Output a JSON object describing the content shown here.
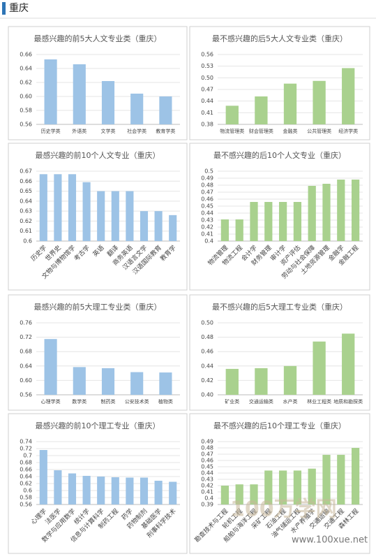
{
  "header": {
    "title": "重庆"
  },
  "watermark": {
    "logo": "100万学网",
    "url": "www.100xue.net"
  },
  "chart_data": [
    {
      "type": "bar",
      "title": "最感兴趣的前5大人文专业类（重庆）",
      "color": "#9dc3e6",
      "grid": true,
      "categories": [
        "历史学类",
        "外语类",
        "文学类",
        "社会学类",
        "教育学类"
      ],
      "values": [
        0.653,
        0.646,
        0.622,
        0.604,
        0.6
      ],
      "ylim": [
        0.56,
        0.66
      ],
      "yticks": [
        0.56,
        0.58,
        {
          "value": 0.6,
          "label": "0.60"
        },
        0.62,
        0.64,
        0.66
      ]
    },
    {
      "type": "bar",
      "title": "最不感兴趣的后5大人文专业类（重庆）",
      "color": "#a9d18e",
      "grid": true,
      "categories": [
        "物流管理类",
        "财会管理类",
        "金融类",
        "公共管理类",
        "经济学类"
      ],
      "values": [
        0.428,
        0.452,
        0.485,
        0.492,
        0.525
      ],
      "ylim": [
        0.38,
        0.56
      ],
      "yticks": [
        0.38,
        0.41,
        0.44,
        0.47,
        {
          "value": 0.5,
          "label": "0.50"
        },
        0.53,
        0.56
      ]
    },
    {
      "type": "bar",
      "title": "最感兴趣的前10个人文专业（重庆）",
      "color": "#9dc3e6",
      "grid": true,
      "categories": [
        "历史学",
        "世界史",
        "文物与博物馆学",
        "考古学",
        "英语",
        "翻译",
        "商务英语",
        "汉语言文学",
        "汉语国际教育",
        "教育学"
      ],
      "values": [
        0.667,
        0.667,
        0.667,
        0.659,
        0.65,
        0.65,
        0.65,
        0.63,
        0.63,
        0.626
      ],
      "ylim": [
        0.6,
        0.67
      ],
      "yticks": [
        0.6,
        0.61,
        0.62,
        0.63,
        0.64,
        0.65,
        0.66,
        0.67
      ]
    },
    {
      "type": "bar",
      "title": "最不感兴趣的后10个人文专业（重庆）",
      "color": "#a9d18e",
      "grid": true,
      "categories": [
        "物流管理",
        "物流工程",
        "会计学",
        "财务管理",
        "审计学",
        "资产评估",
        "劳动与社会保障",
        "土地资源管理",
        "金融学",
        "金融工程"
      ],
      "values": [
        0.431,
        0.431,
        0.456,
        0.456,
        0.456,
        0.456,
        0.479,
        0.482,
        0.488,
        0.488
      ],
      "ylim": [
        0.4,
        0.5
      ],
      "yticks": [
        0.4,
        0.41,
        0.42,
        0.43,
        0.44,
        0.45,
        0.46,
        0.47,
        0.48,
        0.49,
        0.5
      ]
    },
    {
      "type": "bar",
      "title": "最感兴趣的前5大理工专业类（重庆）",
      "color": "#9dc3e6",
      "grid": true,
      "categories": [
        "心理学类",
        "数学类",
        "制药类",
        "公安技术类",
        "植物类"
      ],
      "values": [
        0.715,
        0.637,
        0.634,
        0.623,
        0.622
      ],
      "ylim": [
        0.56,
        0.76
      ],
      "yticks": [
        0.56,
        {
          "value": 0.6,
          "label": "0.60"
        },
        0.64,
        0.68,
        0.72,
        0.76
      ]
    },
    {
      "type": "bar",
      "title": "最不感兴趣的后5大理工专业类（重庆）",
      "color": "#a9d18e",
      "grid": true,
      "categories": [
        "矿业类",
        "交通运输类",
        "水产类",
        "林业工程类",
        "地质和勘探类"
      ],
      "values": [
        0.436,
        0.437,
        0.44,
        0.474,
        0.485
      ],
      "ylim": [
        0.4,
        0.5
      ],
      "yticks": [
        {
          "value": 0.4,
          "label": "0.40"
        },
        0.42,
        0.44,
        0.46,
        0.48,
        {
          "value": 0.5,
          "label": "0.50"
        }
      ]
    },
    {
      "type": "bar",
      "title": "最感兴趣的前10个理工专业（重庆）",
      "color": "#9dc3e6",
      "grid": true,
      "categories": [
        "心理学",
        "法医学",
        "数学与应用数学",
        "统计学",
        "信息与计算科学",
        "制药工程",
        "药学",
        "药物制剂",
        "基础医学",
        "刑事科学技术"
      ],
      "values": [
        0.716,
        0.658,
        0.649,
        0.642,
        0.64,
        0.638,
        0.637,
        0.637,
        0.628,
        0.625
      ],
      "ylim": [
        0.56,
        0.74
      ],
      "yticks": [
        0.56,
        0.58,
        0.6,
        0.62,
        0.64,
        0.66,
        0.68,
        0.7,
        0.72,
        0.74
      ]
    },
    {
      "type": "bar",
      "title": "最不感兴趣的后10个理工专业（重庆）",
      "color": "#a9d18e",
      "grid": true,
      "categories": [
        "勘查技术与工程",
        "轮机工程",
        "船舶与海洋工程",
        "采矿工程",
        "石油工程",
        "油气储运工程",
        "水产养殖学",
        "交通运输",
        "交通工程",
        "森林工程"
      ],
      "values": [
        0.42,
        0.422,
        0.422,
        0.444,
        0.444,
        0.444,
        0.447,
        0.469,
        0.469,
        0.48
      ],
      "ylim": [
        0.39,
        0.49
      ],
      "yticks": [
        0.39,
        0.4,
        0.41,
        0.42,
        0.43,
        0.44,
        0.45,
        0.46,
        0.47,
        0.48,
        0.49
      ]
    }
  ]
}
